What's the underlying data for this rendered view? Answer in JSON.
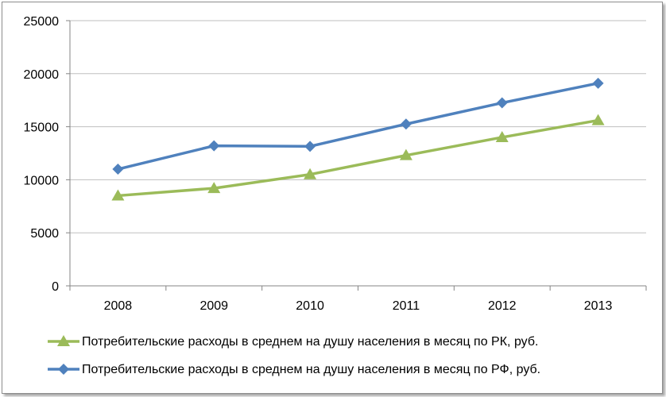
{
  "chart_data": {
    "type": "line",
    "categories": [
      "2008",
      "2009",
      "2010",
      "2011",
      "2012",
      "2013"
    ],
    "ylim": [
      0,
      25000
    ],
    "yticks": [
      0,
      5000,
      10000,
      15000,
      20000,
      25000
    ],
    "grid": true,
    "legend_position": "bottom",
    "series": [
      {
        "name": "Потребительские расходы в среднем на душу населения в месяц по РК, руб.",
        "color": "#9bbb59",
        "marker": "triangle",
        "values": [
          8500,
          9200,
          10500,
          12300,
          14000,
          15600
        ]
      },
      {
        "name": "Потребительские расходы в среднем на душу населения в месяц по РФ, руб.",
        "color": "#4f81bd",
        "marker": "diamond",
        "values": [
          11000,
          13200,
          13150,
          15250,
          17250,
          19100
        ]
      }
    ]
  }
}
